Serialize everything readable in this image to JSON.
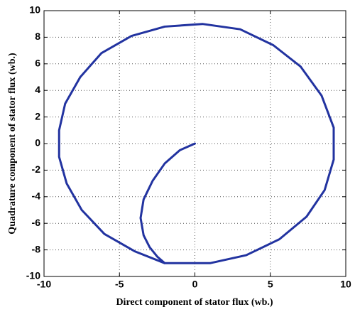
{
  "chart_data": {
    "type": "line",
    "xlabel": "Direct component of stator flux (wb.)",
    "ylabel": "Quadrature component of stator flux (wb.)",
    "x": [
      0,
      -1,
      -2,
      -2.8,
      -3.4,
      -3.6,
      -3.4,
      -3,
      -2.5,
      -2,
      -4,
      -6,
      -7.5,
      -8.5,
      -9,
      -9,
      -8.6,
      -7.6,
      -6.2,
      -4.2,
      -2,
      0.5,
      3,
      5.2,
      7,
      8.4,
      9.2,
      9.2,
      8.6,
      7.4,
      5.6,
      3.4,
      1,
      -2
    ],
    "series": [
      {
        "color": "#2233a0",
        "values": [
          0,
          -0.5,
          -1.5,
          -2.8,
          -4.2,
          -5.6,
          -6.9,
          -7.8,
          -8.5,
          -9,
          -8.1,
          -6.8,
          -5,
          -3,
          -1,
          1,
          3,
          5,
          6.8,
          8.1,
          8.8,
          9,
          8.6,
          7.4,
          5.8,
          3.6,
          1.2,
          -1.2,
          -3.5,
          -5.5,
          -7.2,
          -8.4,
          -9,
          -9
        ]
      }
    ],
    "xlim": [
      -10,
      10
    ],
    "xticks": [
      -10,
      -5,
      0,
      5,
      10
    ],
    "ylim": [
      -10,
      10
    ],
    "yticks": [
      -10,
      -8,
      -6,
      -4,
      -2,
      0,
      2,
      4,
      6,
      8,
      10
    ],
    "grid": true
  }
}
